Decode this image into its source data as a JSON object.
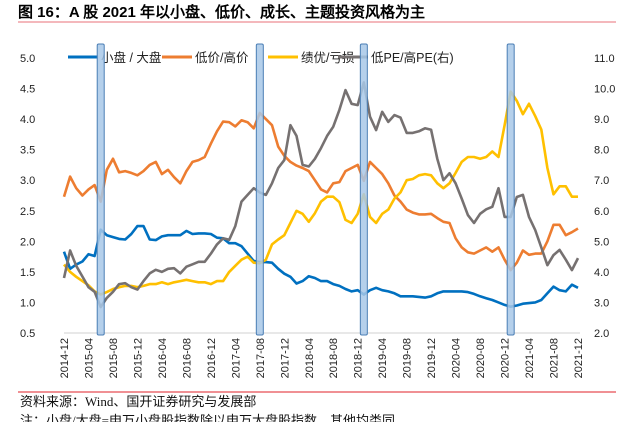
{
  "title": "图 16：A 股 2021 年以小盘、低价、成长、主题投资风格为主",
  "source": "资料来源：Wind、国开证券研究与发展部",
  "note": "注：小盘/大盘=申万小盘股指数除以申万大盘股指数，其他均类同",
  "colors": {
    "title_rule": "#e8717a",
    "footer_rule": "#e0202a",
    "highlight_fill": "#a8c8e8",
    "highlight_stroke": "#4a7eb5"
  },
  "chart_data": {
    "type": "line",
    "title": "",
    "xlabel": "",
    "ylabel": "",
    "y_left": {
      "range": [
        0.5,
        5.0
      ],
      "ticks": [
        "5.0",
        "4.5",
        "4.0",
        "3.5",
        "3.0",
        "2.5",
        "2.0",
        "1.5",
        "1.0",
        "0.5"
      ]
    },
    "y_right": {
      "range": [
        2.0,
        11.0
      ],
      "ticks": [
        "11.0",
        "10.0",
        "9.0",
        "8.0",
        "7.0",
        "6.0",
        "5.0",
        "4.0",
        "3.0",
        "2.0"
      ]
    },
    "x_tick_labels": [
      "2014-12",
      "2015-04",
      "2015-08",
      "2015-12",
      "2016-04",
      "2016-08",
      "2016-12",
      "2017-04",
      "2017-08",
      "2017-12",
      "2018-04",
      "2018-08",
      "2018-12",
      "2019-04",
      "2019-08",
      "2019-12",
      "2020-04",
      "2020-08",
      "2020-12",
      "2021-04",
      "2021-08",
      "2021-12"
    ],
    "grid": false,
    "legend_position": "top",
    "highlight_periods": [
      "2015-06",
      "2017-08",
      "2019-01",
      "2021-01"
    ],
    "x": [
      "2014-12",
      "2015-01",
      "2015-02",
      "2015-03",
      "2015-04",
      "2015-05",
      "2015-06",
      "2015-07",
      "2015-08",
      "2015-09",
      "2015-10",
      "2015-11",
      "2015-12",
      "2016-01",
      "2016-02",
      "2016-03",
      "2016-04",
      "2016-05",
      "2016-06",
      "2016-07",
      "2016-08",
      "2016-09",
      "2016-10",
      "2016-11",
      "2016-12",
      "2017-01",
      "2017-02",
      "2017-03",
      "2017-04",
      "2017-05",
      "2017-06",
      "2017-07",
      "2017-08",
      "2017-09",
      "2017-10",
      "2017-11",
      "2017-12",
      "2018-01",
      "2018-02",
      "2018-03",
      "2018-04",
      "2018-05",
      "2018-06",
      "2018-07",
      "2018-08",
      "2018-09",
      "2018-10",
      "2018-11",
      "2018-12",
      "2019-01",
      "2019-02",
      "2019-03",
      "2019-04",
      "2019-05",
      "2019-06",
      "2019-07",
      "2019-08",
      "2019-09",
      "2019-10",
      "2019-11",
      "2019-12",
      "2020-01",
      "2020-02",
      "2020-03",
      "2020-04",
      "2020-05",
      "2020-06",
      "2020-07",
      "2020-08",
      "2020-09",
      "2020-10",
      "2020-11",
      "2020-12",
      "2021-01",
      "2021-02",
      "2021-03",
      "2021-04",
      "2021-05",
      "2021-06",
      "2021-07",
      "2021-08",
      "2021-09",
      "2021-10",
      "2021-11",
      "2021-12"
    ],
    "series": [
      {
        "name": "小盘 / 大盘",
        "axis": "left",
        "color": "#0070c0",
        "values": [
          1.83,
          1.55,
          1.62,
          1.67,
          1.79,
          1.76,
          2.19,
          2.1,
          2.07,
          2.04,
          2.03,
          2.12,
          2.25,
          2.25,
          2.03,
          2.02,
          2.08,
          2.1,
          2.1,
          2.1,
          2.17,
          2.12,
          2.13,
          2.13,
          2.12,
          2.06,
          2.05,
          1.97,
          1.97,
          1.92,
          1.8,
          1.68,
          1.66,
          1.66,
          1.65,
          1.55,
          1.47,
          1.42,
          1.31,
          1.35,
          1.43,
          1.4,
          1.35,
          1.35,
          1.3,
          1.27,
          1.22,
          1.18,
          1.2,
          1.13,
          1.2,
          1.24,
          1.2,
          1.18,
          1.15,
          1.1,
          1.1,
          1.1,
          1.09,
          1.08,
          1.1,
          1.15,
          1.18,
          1.18,
          1.18,
          1.18,
          1.17,
          1.14,
          1.1,
          1.07,
          1.04,
          1.0,
          0.96,
          0.93,
          0.95,
          0.98,
          0.99,
          1.0,
          1.04,
          1.15,
          1.26,
          1.2,
          1.18,
          1.29,
          1.24
        ]
      },
      {
        "name": "低价/高价",
        "axis": "left",
        "color": "#ed7d31",
        "values": [
          2.73,
          3.06,
          2.87,
          2.75,
          2.85,
          2.92,
          2.65,
          3.17,
          3.35,
          3.13,
          3.15,
          3.12,
          3.08,
          3.15,
          3.25,
          3.3,
          3.1,
          3.17,
          3.05,
          2.95,
          3.15,
          3.3,
          3.33,
          3.38,
          3.6,
          3.8,
          3.96,
          3.95,
          3.88,
          3.98,
          3.95,
          3.85,
          4.1,
          4.0,
          3.9,
          3.55,
          3.4,
          3.3,
          3.24,
          3.2,
          3.15,
          3.0,
          2.85,
          2.8,
          2.95,
          2.97,
          3.15,
          3.2,
          3.25,
          2.99,
          3.3,
          3.2,
          3.1,
          2.95,
          2.75,
          2.65,
          2.52,
          2.47,
          2.44,
          2.44,
          2.45,
          2.38,
          2.32,
          2.3,
          2.05,
          1.9,
          1.82,
          1.8,
          1.85,
          1.9,
          1.83,
          1.9,
          1.7,
          1.53,
          1.65,
          1.85,
          1.78,
          1.8,
          1.8,
          2.0,
          2.27,
          2.27,
          2.1,
          2.15,
          2.21
        ]
      },
      {
        "name": "绩优/亏损",
        "axis": "left",
        "color": "#ffc000",
        "values": [
          1.62,
          1.5,
          1.42,
          1.35,
          1.28,
          1.18,
          1.13,
          1.17,
          1.22,
          1.25,
          1.27,
          1.27,
          1.25,
          1.27,
          1.3,
          1.3,
          1.33,
          1.3,
          1.33,
          1.35,
          1.37,
          1.35,
          1.33,
          1.33,
          1.3,
          1.35,
          1.35,
          1.5,
          1.6,
          1.7,
          1.75,
          1.65,
          1.64,
          1.7,
          1.95,
          2.03,
          2.1,
          2.3,
          2.5,
          2.45,
          2.32,
          2.46,
          2.65,
          2.73,
          2.73,
          2.64,
          2.35,
          2.3,
          2.45,
          2.77,
          2.4,
          2.3,
          2.45,
          2.52,
          2.7,
          2.8,
          3.0,
          3.02,
          3.08,
          3.1,
          3.08,
          2.95,
          2.87,
          2.95,
          3.12,
          3.3,
          3.38,
          3.38,
          3.35,
          3.38,
          3.47,
          3.38,
          3.9,
          4.45,
          4.3,
          4.08,
          4.25,
          4.05,
          3.83,
          3.2,
          2.77,
          2.9,
          2.9,
          2.73,
          2.73
        ]
      },
      {
        "name": "低PE/高PE(右)",
        "axis": "right",
        "color": "#767171",
        "values": [
          3.8,
          4.7,
          4.2,
          3.85,
          3.5,
          3.35,
          2.85,
          3.15,
          3.35,
          3.6,
          3.63,
          3.5,
          3.42,
          3.7,
          3.95,
          4.07,
          4.0,
          4.1,
          4.12,
          3.95,
          4.17,
          4.25,
          4.33,
          4.33,
          4.6,
          4.9,
          5.1,
          5.05,
          5.5,
          6.3,
          6.52,
          6.74,
          6.6,
          6.52,
          6.9,
          7.4,
          7.66,
          8.8,
          8.45,
          7.5,
          7.45,
          7.7,
          8.05,
          8.45,
          8.75,
          9.3,
          9.95,
          9.5,
          9.46,
          10.2,
          9.08,
          8.64,
          9.24,
          8.91,
          9.13,
          9.05,
          8.55,
          8.55,
          8.6,
          8.7,
          8.65,
          7.7,
          7.0,
          7.23,
          6.9,
          6.4,
          5.86,
          5.6,
          5.9,
          6.05,
          6.13,
          6.74,
          5.8,
          5.8,
          6.45,
          6.52,
          5.8,
          5.37,
          4.8,
          4.22,
          4.55,
          4.72,
          4.4,
          4.06,
          4.45
        ]
      }
    ]
  }
}
